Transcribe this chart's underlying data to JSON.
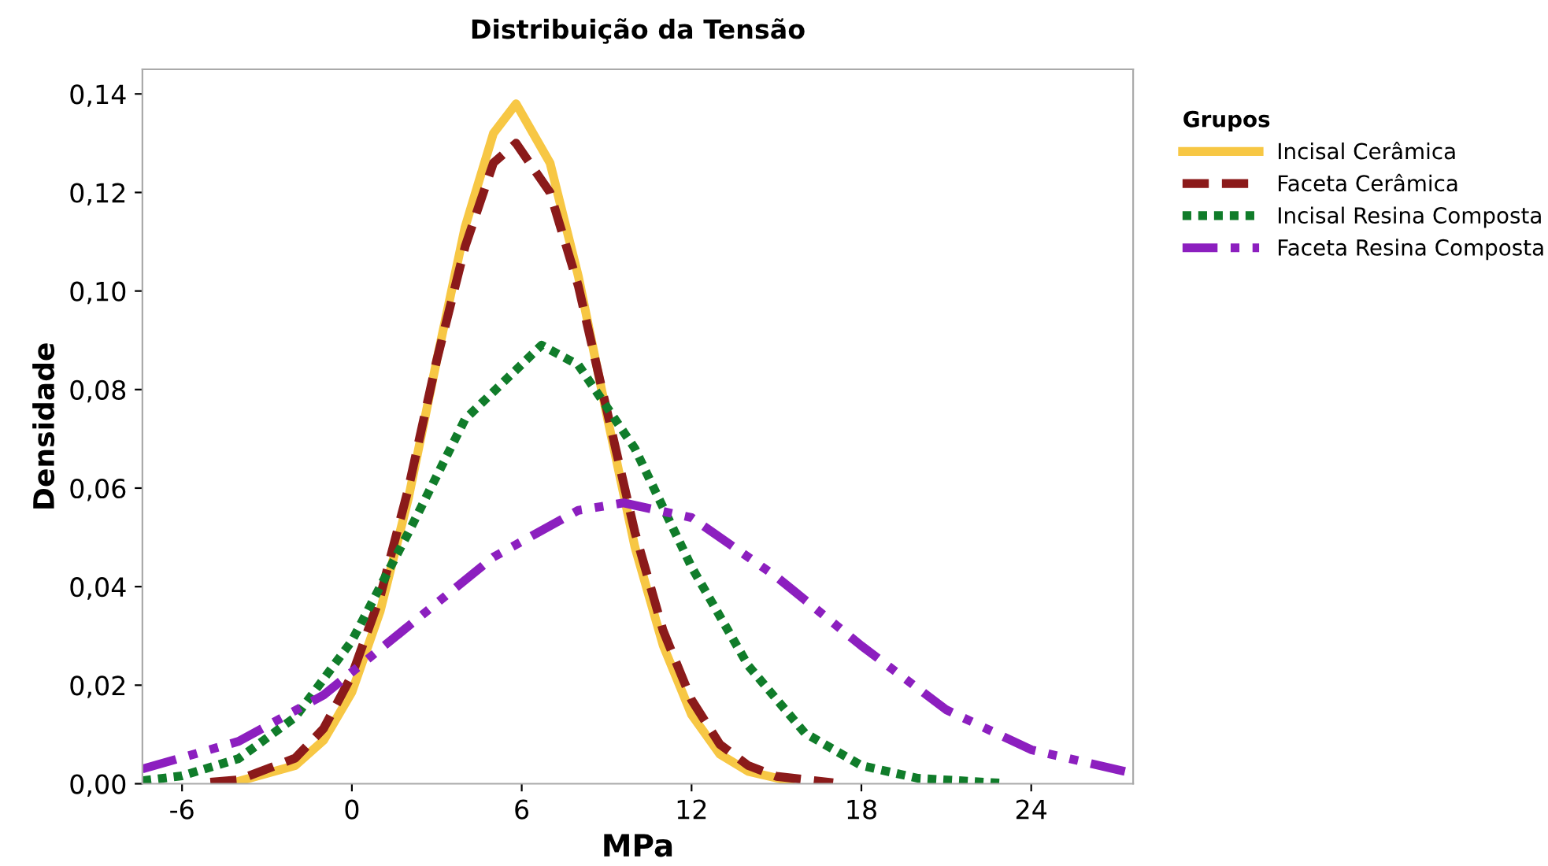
{
  "chart_data": {
    "type": "line",
    "title": "Distribuição da Tensão",
    "xlabel": "MPa",
    "ylabel": "Densidade",
    "legend_title": "Grupos",
    "legend": "right",
    "grid": false,
    "marker": "none",
    "xlim": [
      -7.4,
      27.6
    ],
    "ylim": [
      0,
      0.145
    ],
    "xticks": [
      -6,
      0,
      6,
      12,
      18,
      24
    ],
    "yticks": [
      {
        "value": 0,
        "label": "0,00"
      },
      {
        "value": 0.02,
        "label": "0,02"
      },
      {
        "value": 0.04,
        "label": "0,04"
      },
      {
        "value": 0.06,
        "label": "0,06"
      },
      {
        "value": 0.08,
        "label": "0,08"
      },
      {
        "value": 0.1,
        "label": "0,10"
      },
      {
        "value": 0.12,
        "label": "0,12"
      },
      {
        "value": 0.14,
        "label": "0,14"
      }
    ],
    "series": [
      {
        "name": "Incisal Cerâmica",
        "color": "#f7c744",
        "line_style": "solid",
        "x": [
          -4,
          -2,
          -1,
          0,
          1,
          2,
          3,
          4,
          5,
          5.8,
          7,
          8,
          9,
          10,
          11,
          12,
          13,
          14,
          15.5
        ],
        "values": [
          0.0005,
          0.0037,
          0.0088,
          0.0186,
          0.035,
          0.058,
          0.086,
          0.113,
          0.132,
          0.138,
          0.126,
          0.103,
          0.075,
          0.048,
          0.028,
          0.014,
          0.006,
          0.0025,
          0.0005
        ]
      },
      {
        "name": "Faceta Cerâmica",
        "color": "#8b1a1a",
        "line_style": "dashed",
        "x": [
          -5,
          -4,
          -2,
          -1,
          0,
          1,
          2,
          3,
          4,
          5,
          5.8,
          7,
          8,
          9,
          10,
          11,
          12,
          13,
          14,
          15,
          17
        ],
        "values": [
          0.0003,
          0.0008,
          0.0052,
          0.0112,
          0.022,
          0.038,
          0.06,
          0.086,
          0.109,
          0.126,
          0.13,
          0.12,
          0.101,
          0.076,
          0.051,
          0.031,
          0.017,
          0.008,
          0.0037,
          0.0015,
          0.0002
        ]
      },
      {
        "name": "Incisal Resina Composta",
        "color": "#107c2a",
        "line_style": "dotted",
        "x": [
          -7.4,
          -6,
          -4,
          -2,
          0,
          2,
          4,
          6.7,
          8,
          10,
          12,
          14,
          16,
          18,
          20,
          23
        ],
        "values": [
          0.0006,
          0.0016,
          0.0051,
          0.0135,
          0.029,
          0.051,
          0.074,
          0.089,
          0.085,
          0.068,
          0.044,
          0.024,
          0.0103,
          0.0037,
          0.0011,
          0.0001
        ]
      },
      {
        "name": "Faceta Resina Composta",
        "color": "#8c1fbf",
        "line_style": "dashdot",
        "x": [
          -7.4,
          -4,
          -1,
          2,
          5,
          8,
          9.6,
          12,
          15,
          18,
          21,
          24,
          27.6
        ],
        "values": [
          0.003,
          0.0086,
          0.018,
          0.032,
          0.046,
          0.0555,
          0.057,
          0.054,
          0.042,
          0.028,
          0.015,
          0.0069,
          0.0021
        ]
      }
    ]
  }
}
